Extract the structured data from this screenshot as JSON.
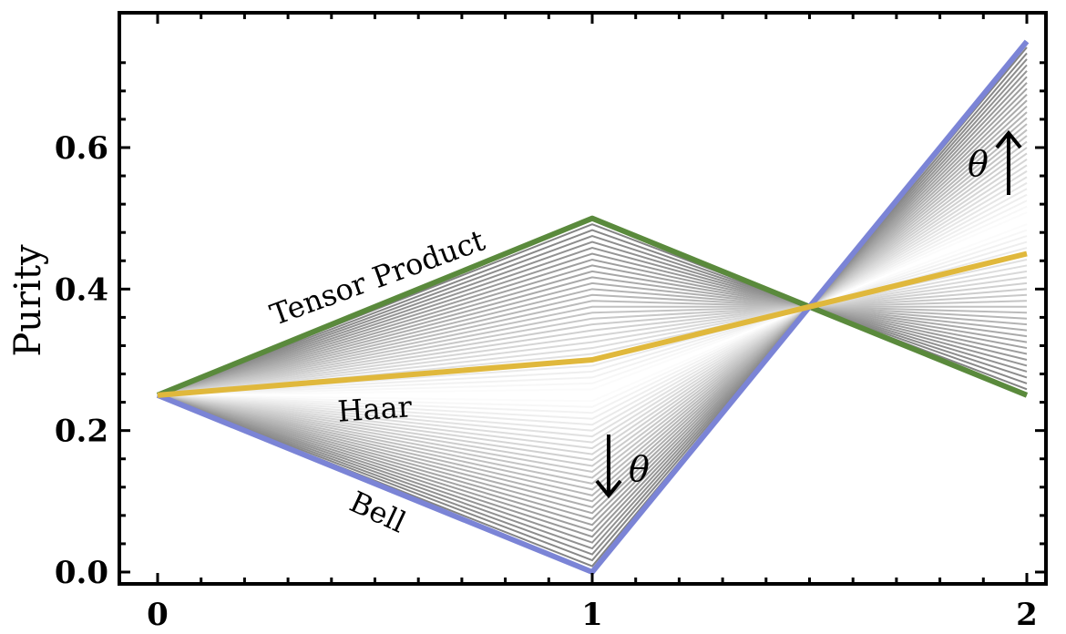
{
  "chart_data": {
    "type": "line",
    "ylabel": "Purity",
    "xlabel": "",
    "xlim": [
      0,
      2
    ],
    "ylim": [
      0,
      0.78
    ],
    "x_ticks": [
      "0",
      "1",
      "2"
    ],
    "y_ticks": [
      "0.0",
      "0.2",
      "0.4",
      "0.6"
    ],
    "grid": false,
    "series": [
      {
        "name": "Tensor Product",
        "x": [
          0,
          1,
          2
        ],
        "values": [
          0.25,
          0.5,
          0.25
        ],
        "color": "#5a8a3c"
      },
      {
        "name": "Bell",
        "x": [
          0,
          1,
          2
        ],
        "values": [
          0.25,
          0.0,
          0.75
        ],
        "color": "#7b84d6"
      },
      {
        "name": "Haar",
        "x": [
          0,
          1,
          2
        ],
        "values": [
          0.25,
          0.3,
          0.45
        ],
        "color": "#e0b83c"
      }
    ],
    "interpolation_family": {
      "description_color_range": [
        "#ffffff",
        "#808080"
      ],
      "count": 60
    },
    "annotations": {
      "tensor_product": "Tensor Product",
      "haar": "Haar",
      "bell": "Bell",
      "theta": "θ"
    }
  }
}
